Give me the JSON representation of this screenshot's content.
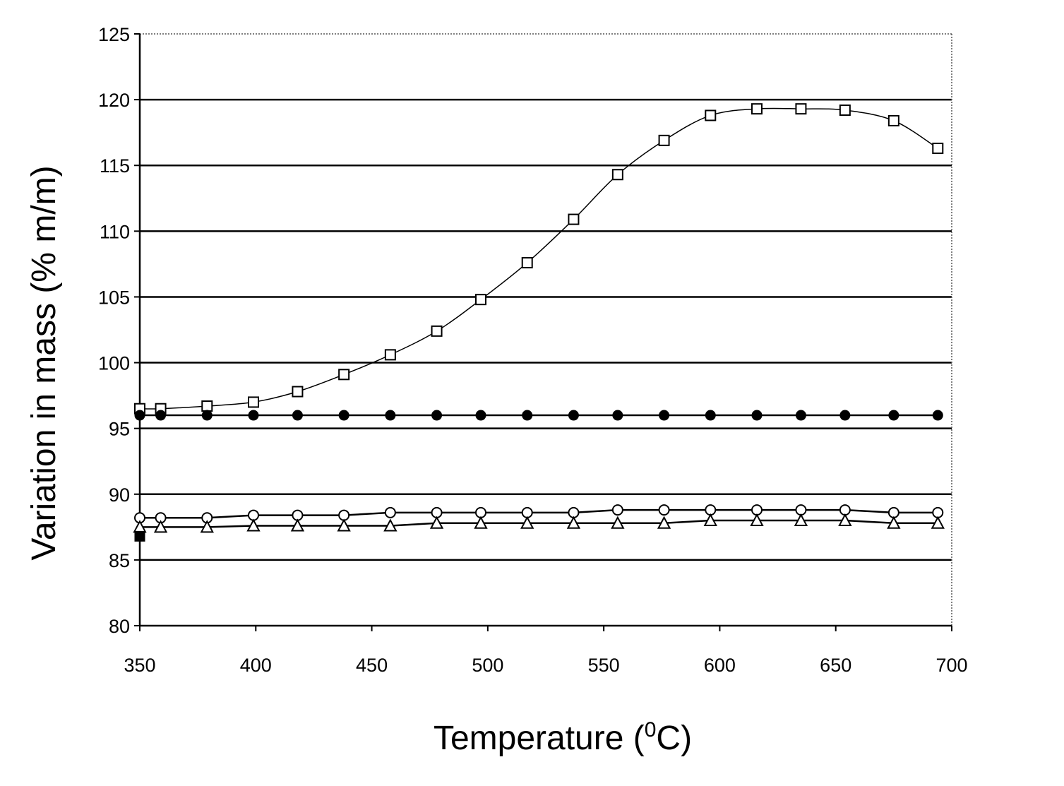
{
  "chart_data": {
    "type": "line",
    "xlabel": "Temperature (",
    "xlabel_sup": "0",
    "xlabel_end": "C)",
    "ylabel": "Variation in mass (% m/m)",
    "xlim": [
      350,
      700
    ],
    "ylim": [
      80,
      125
    ],
    "x_ticks": [
      350,
      400,
      450,
      500,
      550,
      600,
      650,
      700
    ],
    "y_ticks": [
      80,
      85,
      90,
      95,
      100,
      105,
      110,
      115,
      120,
      125
    ],
    "grid": "horizontal",
    "legend": "none",
    "series": [
      {
        "marker": "open-square",
        "x": [
          350,
          359,
          379,
          399,
          418,
          438,
          458,
          478,
          497,
          517,
          537,
          556,
          576,
          596,
          616,
          635,
          654,
          675,
          694
        ],
        "y": [
          96.5,
          96.5,
          96.7,
          97.0,
          97.8,
          99.1,
          100.6,
          102.4,
          104.8,
          107.6,
          110.9,
          114.3,
          116.9,
          118.8,
          119.3,
          119.3,
          119.2,
          118.4,
          116.3
        ]
      },
      {
        "marker": "filled-circle",
        "x": [
          350,
          359,
          379,
          399,
          418,
          438,
          458,
          478,
          497,
          517,
          537,
          556,
          576,
          596,
          616,
          635,
          654,
          675,
          694
        ],
        "y": [
          96.0,
          96.0,
          96.0,
          96.0,
          96.0,
          96.0,
          96.0,
          96.0,
          96.0,
          96.0,
          96.0,
          96.0,
          96.0,
          96.0,
          96.0,
          96.0,
          96.0,
          96.0,
          96.0
        ]
      },
      {
        "marker": "open-circle",
        "x": [
          350,
          359,
          379,
          399,
          418,
          438,
          458,
          478,
          497,
          517,
          537,
          556,
          576,
          596,
          616,
          635,
          654,
          675,
          694
        ],
        "y": [
          88.2,
          88.2,
          88.2,
          88.4,
          88.4,
          88.4,
          88.6,
          88.6,
          88.6,
          88.6,
          88.6,
          88.8,
          88.8,
          88.8,
          88.8,
          88.8,
          88.8,
          88.6,
          88.6
        ]
      },
      {
        "marker": "open-triangle",
        "x": [
          350,
          359,
          379,
          399,
          418,
          438,
          458,
          478,
          497,
          517,
          537,
          556,
          576,
          596,
          616,
          635,
          654,
          675,
          694
        ],
        "y": [
          87.5,
          87.5,
          87.5,
          87.6,
          87.6,
          87.6,
          87.6,
          87.8,
          87.8,
          87.8,
          87.8,
          87.8,
          87.8,
          88.0,
          88.0,
          88.0,
          88.0,
          87.8,
          87.8
        ]
      }
    ],
    "annotations": [
      {
        "marker": "filled-square",
        "x": 350,
        "y": 86.8
      }
    ]
  }
}
